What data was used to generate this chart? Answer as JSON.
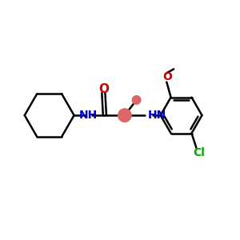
{
  "bg_color": "#ffffff",
  "bond_color": "#000000",
  "bond_lw": 1.8,
  "N_color": "#0000cc",
  "O_color": "#cc0000",
  "Cl_color": "#00aa00",
  "methyl_color": "#dd6666",
  "figsize": [
    3.0,
    3.0
  ],
  "dpi": 100,
  "xlim": [
    0,
    10
  ],
  "ylim": [
    0,
    10
  ]
}
